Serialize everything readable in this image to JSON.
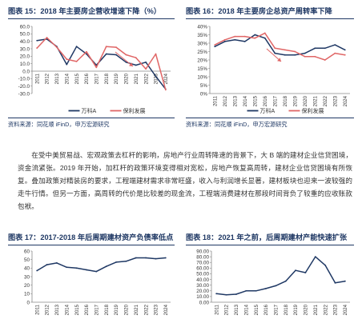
{
  "figures": [
    {
      "title": "图表 15：2018 年主要房企营收增速下降（%）",
      "source": "资料来源：同花顺 iFinD，申万宏源研究"
    },
    {
      "title": "图表 16：2018 年主要房企总资产周转率下降",
      "source": "资料来源：同花顺 iFinD，申万宏源研究"
    },
    {
      "title": "图表 17：2017-2018 年后周期建材资产负债率低点",
      "source": ""
    },
    {
      "title": "图表 18：2021 年之前，后周期建材产能快速扩张",
      "source": ""
    }
  ],
  "paragraph": "在受中美贸易战、宏观政策去杠杆的影响，房地产行业周转降速的背景下，大 B 端的建材企业信贷困境，资金流紧张。2019 年开始，加杠杆的政策环境变得相对宽松，房地产恢复高周转，建材企业信贷困境有所恢复。叠加政策对精装房的要求，工程端建材需求非常旺盛，收入与利润增长显著，建材板块也迎来一波较强的走牛行情。但另一方面，高周转的代价是比较差的现金流，工程端消费建材在那段时间背负了较重的应收账款包袱。",
  "chart_data": [
    {
      "type": "line",
      "title": "图表 15：2018 年主要房企营收增速下降（%）",
      "x": [
        "2011",
        "2012",
        "2013",
        "2014",
        "2015",
        "2016",
        "2017",
        "2018",
        "2019",
        "2020",
        "2021",
        "2022",
        "2023",
        "2024"
      ],
      "ylim": [
        -30,
        60
      ],
      "yticks": [
        "60.0",
        "50.0",
        "40.0",
        "30.0",
        "20.0",
        "10.0",
        "0.0",
        "-10.0",
        "-20.0",
        "-30.0"
      ],
      "series": [
        {
          "name": "万科A",
          "color": "#1f3864",
          "values": [
            41,
            43,
            33,
            9,
            33,
            23,
            8,
            23,
            22,
            12,
            8,
            12,
            -7,
            -24
          ]
        },
        {
          "name": "保利发展",
          "color": "#e06666",
          "values": [
            31,
            45,
            32,
            16,
            13,
            26,
            5,
            33,
            32,
            22,
            18,
            3,
            23,
            -25
          ]
        }
      ],
      "legend": "bottom",
      "grid": false
    },
    {
      "type": "line",
      "title": "图表 16：2018 年主要房企总资产周转率下降",
      "x": [
        "2011",
        "2012",
        "2013",
        "2014",
        "2015",
        "2016",
        "2017",
        "2018",
        "2019",
        "2020",
        "2021",
        "2022",
        "2023",
        "2024"
      ],
      "ylim": [
        0,
        40
      ],
      "yticks": [
        "40%",
        "35%",
        "30%",
        "25%",
        "20%",
        "15%",
        "10%",
        "5%",
        "0%"
      ],
      "series": [
        {
          "name": "万科A",
          "color": "#1f3864",
          "values": [
            28,
            31,
            32,
            31,
            35,
            33,
            24,
            23,
            23,
            24,
            27,
            27,
            29,
            26
          ]
        },
        {
          "name": "保利发展",
          "color": "#e06666",
          "values": [
            29,
            32,
            34,
            34,
            33,
            36,
            27,
            26,
            25,
            22,
            22,
            20,
            24,
            23
          ]
        }
      ],
      "legend": "bottom",
      "grid": false
    },
    {
      "type": "line",
      "title": "图表 17：2017-2018 年后周期建材资产负债率低点",
      "x": [
        "2011",
        "2012",
        "2013",
        "2014",
        "2015",
        "2016",
        "2017",
        "2018",
        "2019",
        "2020",
        "2021",
        "2022",
        "2023",
        "2024"
      ],
      "ylim": [
        0,
        60
      ],
      "yticks": [
        "60",
        "50",
        "40",
        "30",
        "20",
        "10",
        "0"
      ],
      "series": [
        {
          "color": "#1f3864",
          "values": [
            37,
            44,
            46,
            41,
            40,
            38,
            36,
            42,
            47,
            48,
            52,
            52,
            51,
            52
          ]
        }
      ],
      "grid": false
    },
    {
      "type": "line",
      "title": "图表 18：2021 年之前，后周期建材产能快速扩张",
      "x": [
        "2011",
        "2012",
        "2013",
        "2014",
        "2015",
        "2016",
        "2017",
        "2018",
        "2019",
        "2020",
        "2021",
        "2022",
        "2023",
        "2024"
      ],
      "ylim": [
        0,
        90
      ],
      "yticks": [
        "90.00",
        "80.00",
        "70.00",
        "60.00",
        "50.00",
        "40.00",
        "30.00",
        "20.00",
        "10.00",
        "0.00"
      ],
      "series": [
        {
          "color": "#1f3864",
          "values": [
            15,
            13,
            14,
            20,
            20,
            24,
            29,
            37,
            56,
            52,
            80,
            65,
            34,
            37
          ]
        }
      ],
      "grid": false
    }
  ]
}
